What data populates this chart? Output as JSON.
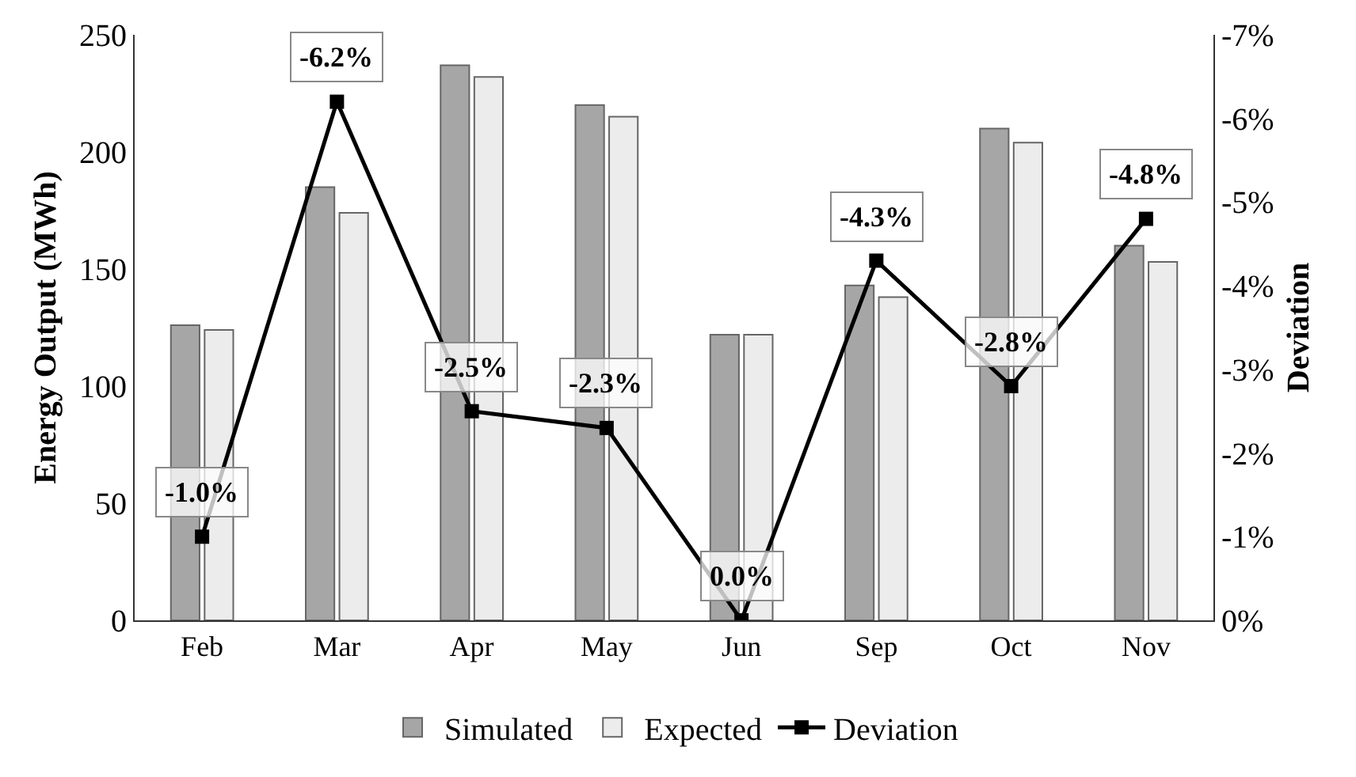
{
  "chart_data": {
    "type": "bar",
    "categories": [
      "Feb",
      "Mar",
      "Apr",
      "May",
      "Jun",
      "Sep",
      "Oct",
      "Nov"
    ],
    "ylabel": "Energy Output (MWh)",
    "y2label": "Deviation",
    "ylim": [
      0,
      250
    ],
    "yticks": [
      0,
      50,
      100,
      150,
      200,
      250
    ],
    "y2lim": [
      0,
      -7
    ],
    "y2ticks": [
      {
        "value": 0,
        "label": "0%"
      },
      {
        "value": -1,
        "label": "-1%"
      },
      {
        "value": -2,
        "label": "-2%"
      },
      {
        "value": -3,
        "label": "-3%"
      },
      {
        "value": -4,
        "label": "-4%"
      },
      {
        "value": -5,
        "label": "-5%"
      },
      {
        "value": -6,
        "label": "-6%"
      },
      {
        "value": -7,
        "label": "-7%"
      }
    ],
    "grid": false,
    "legend": "bottom",
    "series": [
      {
        "name": "Simulated",
        "color": "#a6a6a6",
        "values": [
          126,
          185,
          237,
          220,
          122,
          143,
          210,
          160
        ]
      },
      {
        "name": "Expected",
        "color": "#ececec",
        "values": [
          124,
          174,
          232,
          215,
          122,
          138,
          204,
          153
        ]
      },
      {
        "name": "Deviation",
        "type": "line",
        "axis": "y2",
        "color": "#000000",
        "marker": "square",
        "line_style": "solid",
        "values": [
          -1.0,
          -6.2,
          -2.5,
          -2.3,
          0.0,
          -4.3,
          -2.8,
          -4.8
        ],
        "value_labels": [
          "-1.0%",
          "-6.2%",
          "-2.5%",
          "-2.3%",
          "0.0%",
          "-4.3%",
          "-2.8%",
          "-4.8%"
        ]
      }
    ]
  }
}
